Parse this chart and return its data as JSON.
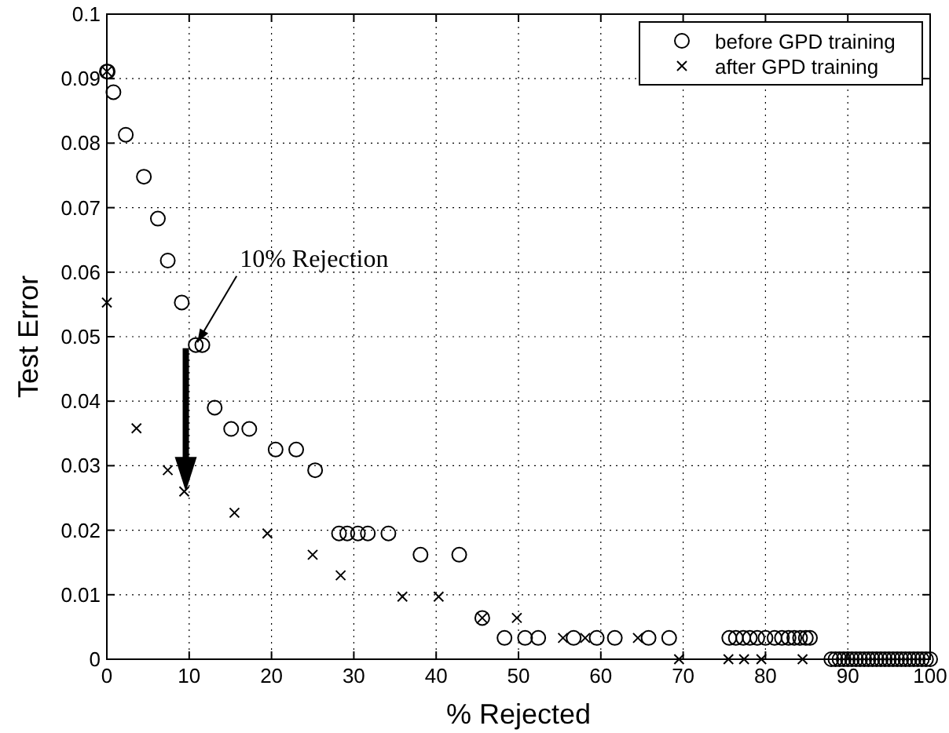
{
  "chart_data": {
    "type": "scatter",
    "xlabel": "% Rejected",
    "ylabel": "Test Error",
    "xlim": [
      0,
      100
    ],
    "ylim": [
      0,
      0.1
    ],
    "xticks": [
      0,
      10,
      20,
      30,
      40,
      50,
      60,
      70,
      80,
      90,
      100
    ],
    "yticks": [
      0,
      0.01,
      0.02,
      0.03,
      0.04,
      0.05,
      0.06,
      0.07,
      0.08,
      0.09,
      0.1
    ],
    "grid": true,
    "legend": "top right",
    "annotations": [
      {
        "text": "10% Rejection",
        "x": 10.8,
        "y": 0.0487
      }
    ],
    "series": [
      {
        "name": "before GPD training",
        "color": "#000000",
        "marker": "circle",
        "x": [
          0,
          0.1,
          0.8,
          2.3,
          4.5,
          6.2,
          7.4,
          9.1,
          10.8,
          11.6,
          13.1,
          15.1,
          17.3,
          20.5,
          23.0,
          25.3,
          28.2,
          29.2,
          30.5,
          31.7,
          34.2,
          38.1,
          42.8,
          45.6,
          48.3,
          50.8,
          52.4,
          56.7,
          59.5,
          61.7,
          65.8,
          68.3,
          75.6,
          76.4,
          77.3,
          78.1,
          79.0,
          80.0,
          81.1,
          82.0,
          82.8,
          83.5,
          84.2,
          84.9,
          85.4,
          88,
          88.5,
          89,
          89.5,
          90,
          90.5,
          91,
          91.5,
          92,
          92.5,
          93,
          93.5,
          94,
          94.5,
          95,
          95.5,
          96,
          96.5,
          97,
          97.5,
          98,
          98.5,
          99,
          99.5,
          100
        ],
        "values": [
          0.0911,
          0.0911,
          0.0879,
          0.0813,
          0.0748,
          0.0683,
          0.0618,
          0.0553,
          0.0487,
          0.0487,
          0.039,
          0.0357,
          0.0357,
          0.0325,
          0.0325,
          0.0293,
          0.0195,
          0.0195,
          0.0195,
          0.0195,
          0.0195,
          0.0162,
          0.0162,
          0.0064,
          0.0033,
          0.0033,
          0.0033,
          0.0033,
          0.0033,
          0.0033,
          0.0033,
          0.0033,
          0.0033,
          0.0033,
          0.0033,
          0.0033,
          0.0033,
          0.0033,
          0.0033,
          0.0033,
          0.0033,
          0.0033,
          0.0033,
          0.0033,
          0.0033,
          0,
          0,
          0,
          0,
          0,
          0,
          0,
          0,
          0,
          0,
          0,
          0,
          0,
          0,
          0,
          0,
          0,
          0,
          0,
          0,
          0,
          0,
          0,
          0,
          0
        ]
      },
      {
        "name": "after GPD training",
        "color": "#000000",
        "marker": "cross",
        "x": [
          0,
          0,
          3.6,
          7.4,
          9.4,
          15.5,
          19.5,
          25.0,
          28.4,
          35.9,
          40.3,
          45.6,
          49.8,
          55.4,
          58.1,
          64.5,
          69.5,
          75.5,
          77.4,
          79.5,
          84.5
        ],
        "values": [
          0.0911,
          0.0553,
          0.0358,
          0.0293,
          0.026,
          0.0227,
          0.0195,
          0.0162,
          0.013,
          0.0097,
          0.0097,
          0.0064,
          0.0064,
          0.0033,
          0.0033,
          0.0033,
          0,
          0,
          0,
          0,
          0
        ]
      }
    ]
  }
}
